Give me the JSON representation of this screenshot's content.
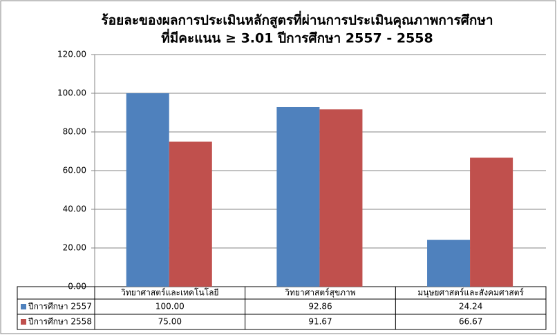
{
  "chart_data": {
    "type": "bar",
    "title": [
      "ร้อยละของผลการประเมินหลักสูตรที่ผ่านการประเมินคุณภาพการศึกษา",
      "ที่มีคะแนน ≥ 3.01 ปีการศึกษา 2557 - 2558"
    ],
    "categories": [
      "วิทยาศาสตร์และเทคโนโลยี",
      "วิทยาศาสตร์สุขภาพ",
      "มนุษยศาสตร์และสังคมศาสตร์"
    ],
    "series": [
      {
        "name": "ปีการศึกษา 2557",
        "color": "#4f81bd",
        "values": [
          100,
          92.86,
          24.24
        ],
        "value_labels": [
          "100.00",
          "92.86",
          "24.24"
        ]
      },
      {
        "name": "ปีการศึกษา 2558",
        "color": "#c0504d",
        "values": [
          75,
          91.67,
          66.67
        ],
        "value_labels": [
          "75.00",
          "91.67",
          "66.67"
        ]
      }
    ],
    "ylim": [
      0,
      120
    ],
    "yticks": [
      {
        "value": 0,
        "label": "0.00"
      },
      {
        "value": 20,
        "label": "20.00"
      },
      {
        "value": 40,
        "label": "40.00"
      },
      {
        "value": 60,
        "label": "60.00"
      },
      {
        "value": 80,
        "label": "80.00"
      },
      {
        "value": 100,
        "label": "100.00"
      },
      {
        "value": 120,
        "label": "120.00"
      }
    ],
    "grid": true,
    "legend": "data-table"
  }
}
